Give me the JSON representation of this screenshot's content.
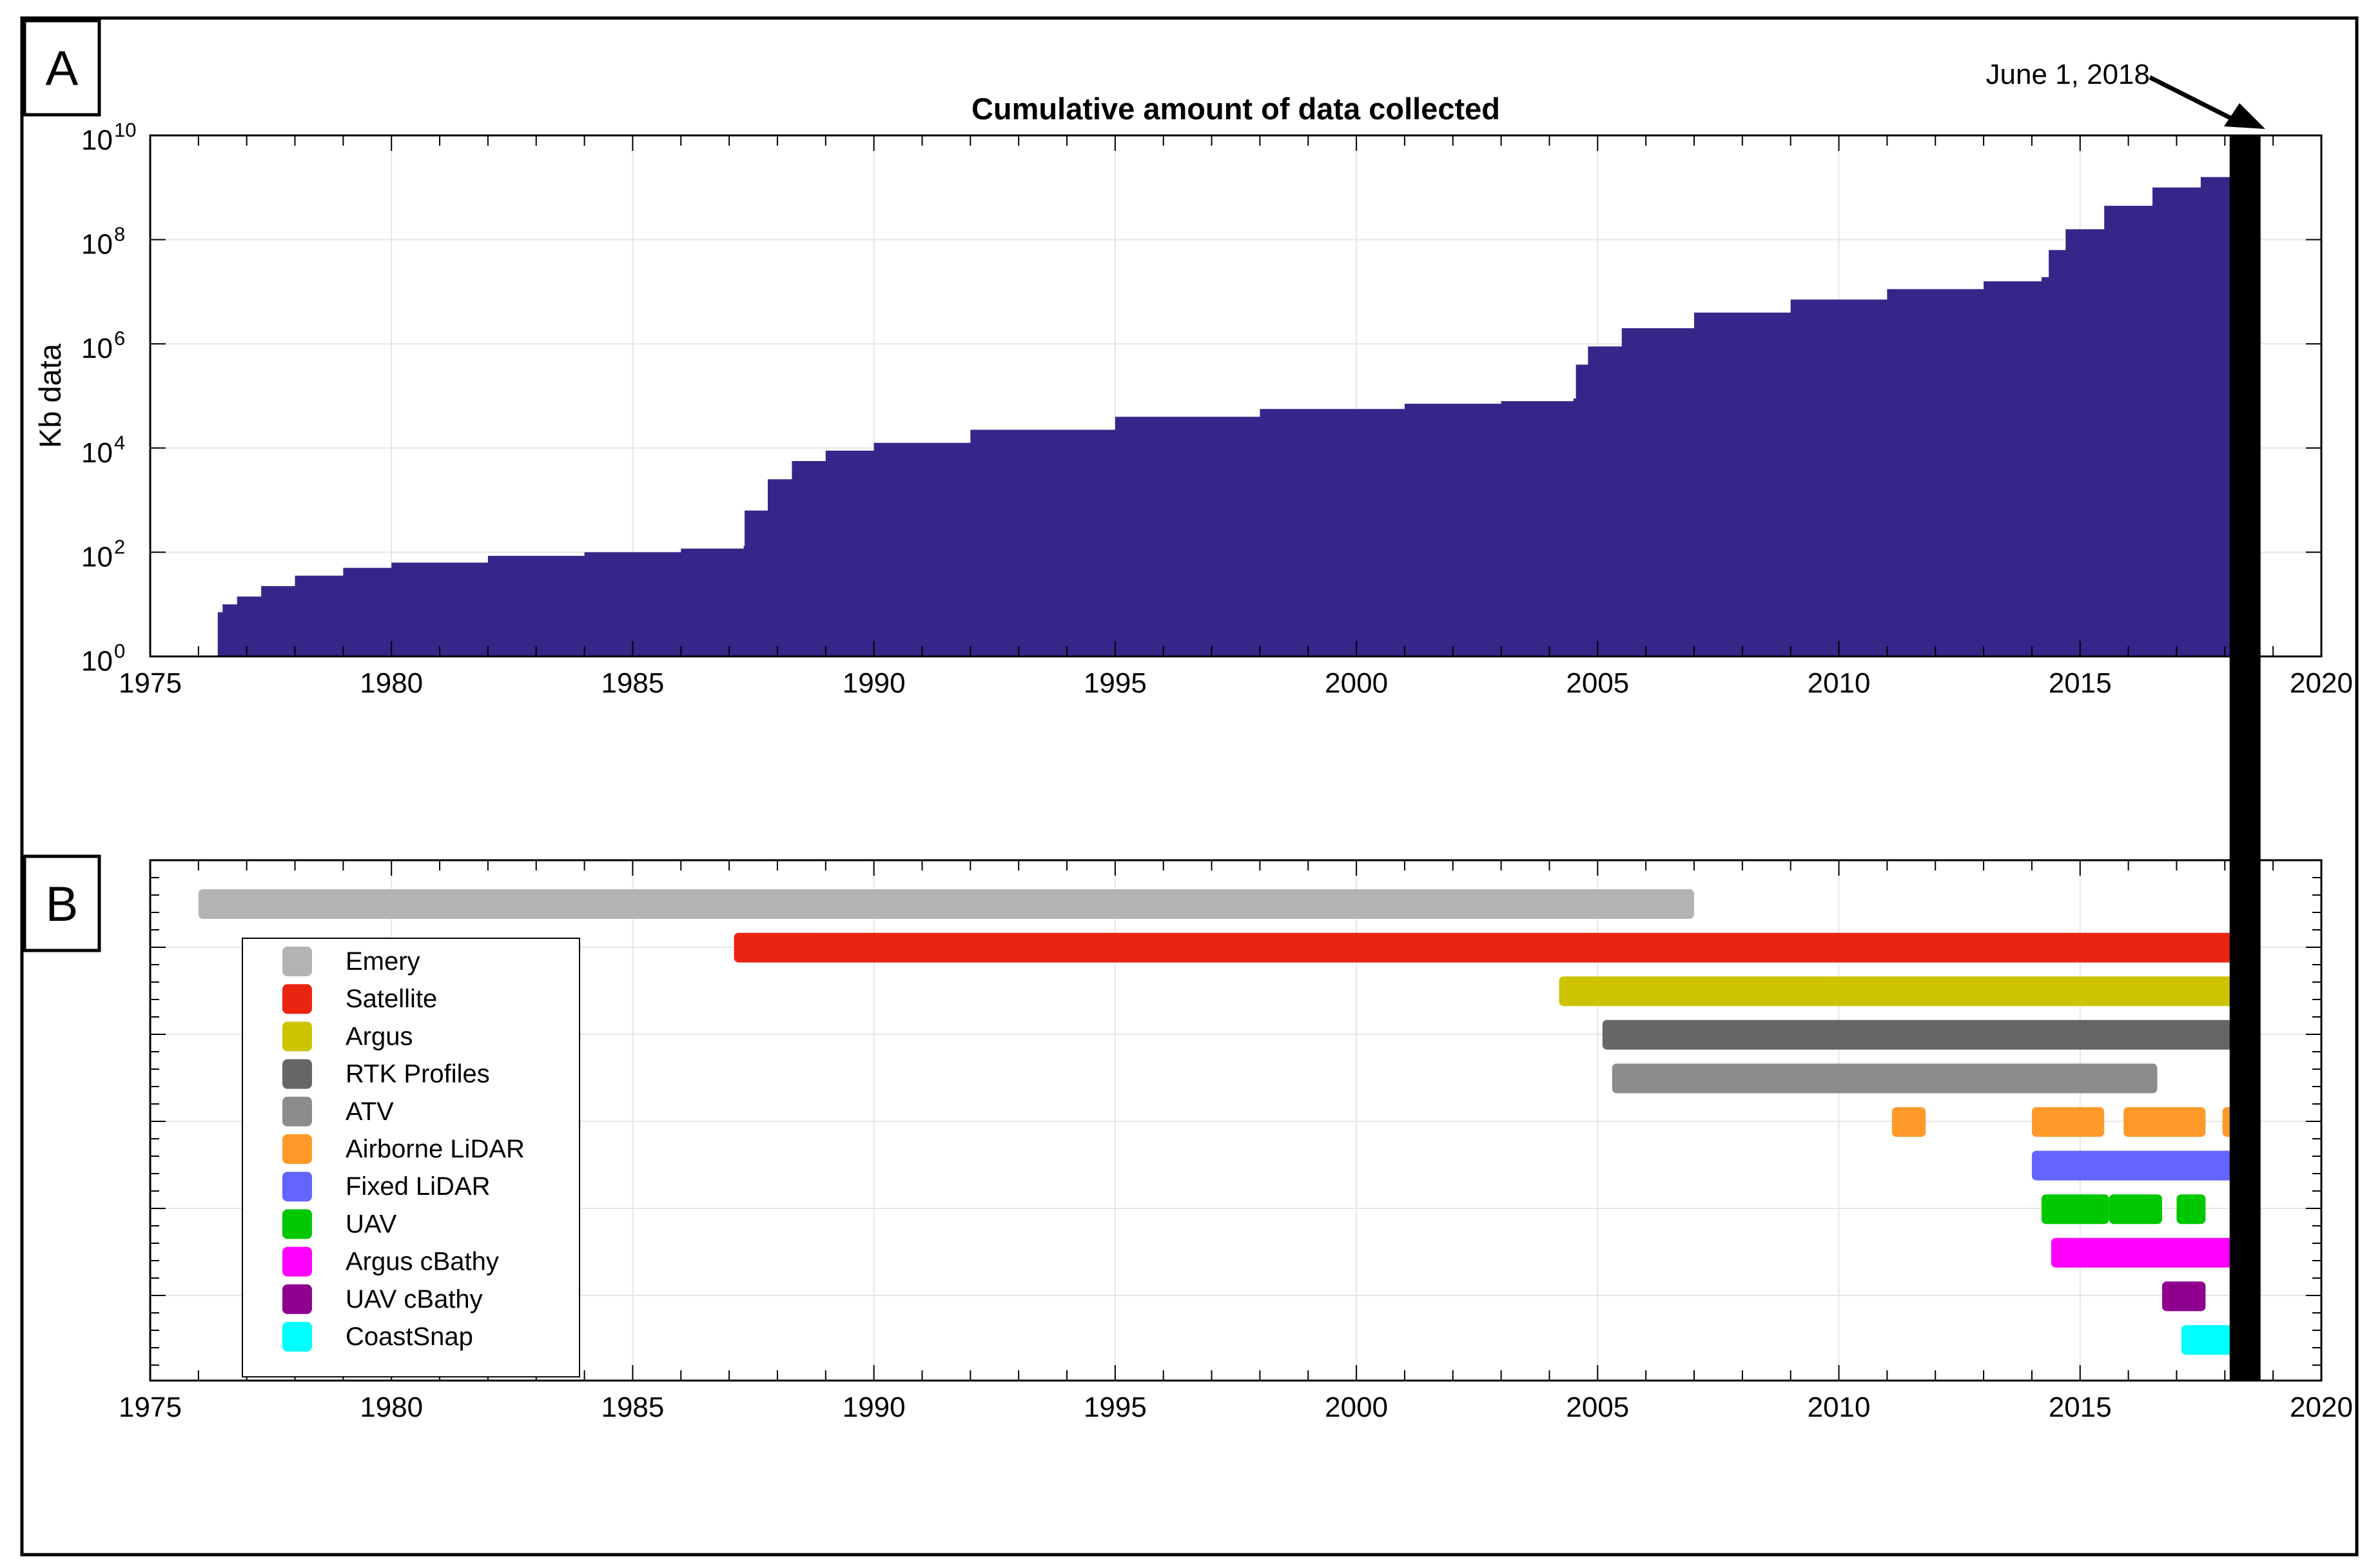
{
  "chart_data": [
    {
      "panel": "A",
      "type": "area",
      "title": "Cumulative amount of data collected",
      "xlabel": "",
      "ylabel": "Kb data",
      "yscale": "log",
      "xlim": [
        1975,
        2020
      ],
      "ylim_exponents": [
        0,
        10
      ],
      "x_ticks": [
        1975,
        1980,
        1985,
        1990,
        1995,
        2000,
        2005,
        2010,
        2015,
        2020
      ],
      "y_tick_exponents": [
        0,
        2,
        4,
        6,
        8,
        10
      ],
      "y_tick_base": "10",
      "color": "#35268A",
      "grid": true,
      "series_log10": [
        [
          1976.35,
          0
        ],
        [
          1976.4,
          0.85
        ],
        [
          1976.5,
          1.0
        ],
        [
          1976.8,
          1.15
        ],
        [
          1977.3,
          1.35
        ],
        [
          1978.0,
          1.55
        ],
        [
          1979.0,
          1.7
        ],
        [
          1980.0,
          1.8
        ],
        [
          1982.0,
          1.93
        ],
        [
          1984.0,
          2.0
        ],
        [
          1986.0,
          2.07
        ],
        [
          1987.3,
          2.12
        ],
        [
          1987.32,
          2.8
        ],
        [
          1987.8,
          3.4
        ],
        [
          1988.3,
          3.75
        ],
        [
          1989.0,
          3.95
        ],
        [
          1990.0,
          4.1
        ],
        [
          1992.0,
          4.35
        ],
        [
          1995.0,
          4.6
        ],
        [
          1998.0,
          4.75
        ],
        [
          2001.0,
          4.85
        ],
        [
          2003.0,
          4.9
        ],
        [
          2004.5,
          4.95
        ],
        [
          2004.55,
          5.6
        ],
        [
          2004.8,
          5.95
        ],
        [
          2005.5,
          6.3
        ],
        [
          2007.0,
          6.6
        ],
        [
          2009.0,
          6.85
        ],
        [
          2011.0,
          7.05
        ],
        [
          2013.0,
          7.2
        ],
        [
          2014.2,
          7.28
        ],
        [
          2014.35,
          7.8
        ],
        [
          2014.7,
          8.2
        ],
        [
          2015.5,
          8.65
        ],
        [
          2016.5,
          9.0
        ],
        [
          2017.5,
          9.2
        ],
        [
          2018.4,
          9.33
        ]
      ],
      "annotation": {
        "text": "June 1, 2018",
        "x": 2018.42
      }
    },
    {
      "panel": "B",
      "type": "bar",
      "orientation": "horizontal",
      "xlim": [
        1975,
        2020
      ],
      "x_ticks": [
        1975,
        1980,
        1985,
        1990,
        1995,
        2000,
        2005,
        2010,
        2015,
        2020
      ],
      "grid": true,
      "legend_position": "left",
      "series": [
        {
          "name": "Emery",
          "color": "#B3B3B3",
          "intervals": [
            [
              1976.0,
              2007.0
            ]
          ]
        },
        {
          "name": "Satellite",
          "color": "#EA2410",
          "intervals": [
            [
              1987.1,
              2018.42
            ]
          ]
        },
        {
          "name": "Argus",
          "color": "#CDC300",
          "intervals": [
            [
              2004.2,
              2018.42
            ]
          ]
        },
        {
          "name": "RTK Profiles",
          "color": "#666666",
          "intervals": [
            [
              2005.1,
              2018.42
            ]
          ]
        },
        {
          "name": "ATV",
          "color": "#8C8C8C",
          "intervals": [
            [
              2005.3,
              2016.6
            ]
          ]
        },
        {
          "name": "Airborne LiDAR",
          "color": "#FF9A2A",
          "intervals": [
            [
              2011.1,
              2011.8
            ],
            [
              2014.0,
              2015.5
            ],
            [
              2015.9,
              2017.6
            ],
            [
              2017.95,
              2018.42
            ]
          ]
        },
        {
          "name": "Fixed LiDAR",
          "color": "#6464FF",
          "intervals": [
            [
              2014.0,
              2018.42
            ]
          ]
        },
        {
          "name": "UAV",
          "color": "#00C800",
          "intervals": [
            [
              2014.2,
              2015.6
            ],
            [
              2015.6,
              2016.7
            ],
            [
              2017.0,
              2017.6
            ]
          ]
        },
        {
          "name": "Argus cBathy",
          "color": "#FF00FF",
          "intervals": [
            [
              2014.4,
              2018.42
            ]
          ]
        },
        {
          "name": "UAV cBathy",
          "color": "#8F008F",
          "intervals": [
            [
              2016.7,
              2017.6
            ]
          ]
        },
        {
          "name": "CoastSnap",
          "color": "#00FFFF",
          "intervals": [
            [
              2017.1,
              2018.42
            ]
          ]
        }
      ]
    }
  ]
}
